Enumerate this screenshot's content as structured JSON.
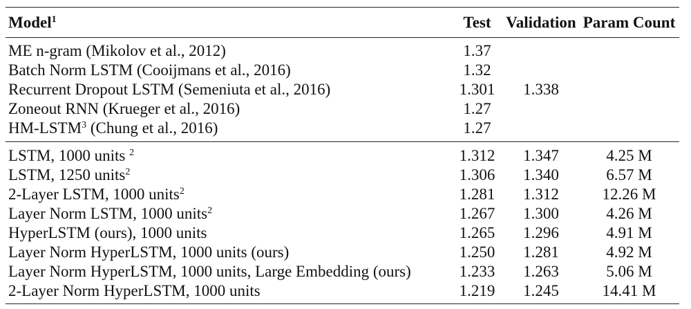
{
  "header": {
    "model": "Model",
    "model_footnote": "1",
    "test": "Test",
    "validation": "Validation",
    "params": "Param Count"
  },
  "group1": [
    {
      "model": "ME n-gram (Mikolov et al., 2012)",
      "sup": "",
      "suffix": "",
      "test": "1.37",
      "validation": "",
      "params": ""
    },
    {
      "model": "Batch Norm LSTM (Cooijmans et al., 2016)",
      "sup": "",
      "suffix": "",
      "test": "1.32",
      "validation": "",
      "params": ""
    },
    {
      "model": "Recurrent Dropout LSTM (Semeniuta et al., 2016)",
      "sup": "",
      "suffix": "",
      "test": "1.301",
      "validation": "1.338",
      "params": ""
    },
    {
      "model": "Zoneout RNN (Krueger et al., 2016)",
      "sup": "",
      "suffix": "",
      "test": "1.27",
      "validation": "",
      "params": ""
    },
    {
      "model": "HM-LSTM",
      "sup": "3",
      "suffix": " (Chung et al., 2016)",
      "test": "1.27",
      "validation": "",
      "params": ""
    }
  ],
  "group2": [
    {
      "model": "LSTM, 1000 units ",
      "sup": "2",
      "suffix": "",
      "test": "1.312",
      "validation": "1.347",
      "params": "4.25 M"
    },
    {
      "model": "LSTM, 1250 units",
      "sup": "2",
      "suffix": "",
      "test": "1.306",
      "validation": "1.340",
      "params": "6.57 M"
    },
    {
      "model": "2-Layer LSTM, 1000 units",
      "sup": "2",
      "suffix": "",
      "test": "1.281",
      "validation": "1.312",
      "params": "12.26 M"
    },
    {
      "model": "Layer Norm LSTM, 1000 units",
      "sup": "2",
      "suffix": "",
      "test": "1.267",
      "validation": "1.300",
      "params": "4.26 M"
    },
    {
      "model": "HyperLSTM (ours), 1000 units",
      "sup": "",
      "suffix": "",
      "test": "1.265",
      "validation": "1.296",
      "params": "4.91 M"
    },
    {
      "model": "Layer Norm HyperLSTM, 1000 units (ours)",
      "sup": "",
      "suffix": "",
      "test": "1.250",
      "validation": "1.281",
      "params": "4.92 M"
    },
    {
      "model": "Layer Norm HyperLSTM, 1000 units, Large Embedding (ours)",
      "sup": "",
      "suffix": "",
      "test": "1.233",
      "validation": "1.263",
      "params": "5.06 M"
    },
    {
      "model": "2-Layer Norm HyperLSTM, 1000 units",
      "sup": "",
      "suffix": "",
      "test": "1.219",
      "validation": "1.245",
      "params": "14.41 M"
    }
  ]
}
